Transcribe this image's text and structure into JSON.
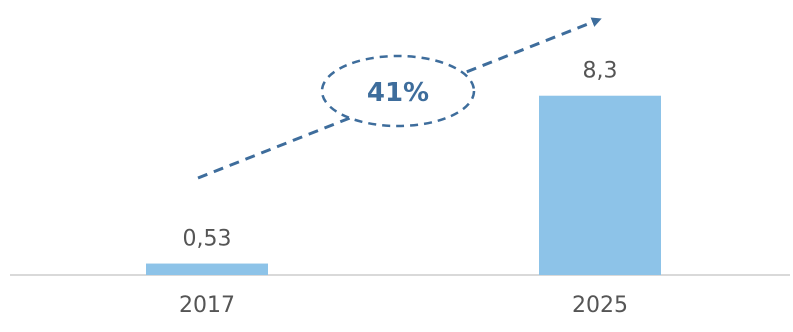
{
  "chart_data": {
    "type": "bar",
    "categories": [
      "2017",
      "2025"
    ],
    "values": [
      0.53,
      8.3
    ],
    "value_labels": [
      "0,53",
      "8,3"
    ],
    "title": "",
    "xlabel": "",
    "ylabel": "",
    "ylim": [
      0,
      10
    ],
    "grid": false,
    "legend": "none",
    "annotation": {
      "text": "41%",
      "style": "dashed-ellipse-with-dashed-arrow"
    },
    "colors": {
      "bar": "#8dc3e8",
      "baseline": "#d9d9d9",
      "annotation": "#3e6d9c",
      "text": "#555555"
    }
  }
}
